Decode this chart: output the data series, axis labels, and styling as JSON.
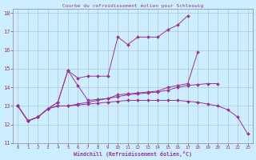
{
  "title": "Courbe du refroidissement éolien pour Schleswig",
  "xlabel": "Windchill (Refroidissement éolien,°C)",
  "bg_color": "#cceeff",
  "line_color": "#993399",
  "xlim": [
    -0.5,
    23.5
  ],
  "ylim": [
    11,
    18.2
  ],
  "xticks": [
    0,
    1,
    2,
    3,
    4,
    5,
    6,
    7,
    8,
    9,
    10,
    11,
    12,
    13,
    14,
    15,
    16,
    17,
    18,
    19,
    20,
    21,
    22,
    23
  ],
  "yticks": [
    11,
    12,
    13,
    14,
    15,
    16,
    17,
    18
  ],
  "lines": [
    {
      "x": [
        0,
        1,
        2,
        3,
        4,
        5,
        6,
        7,
        8,
        9,
        10,
        11,
        12,
        13,
        14,
        15,
        16,
        17,
        18,
        19,
        20,
        21,
        22,
        23
      ],
      "y": [
        13.0,
        12.2,
        12.4,
        12.85,
        13.2,
        14.9,
        14.5,
        14.6,
        14.6,
        14.6,
        16.7,
        16.3,
        16.7,
        16.7,
        16.7,
        17.1,
        17.35,
        17.85,
        null,
        null,
        null,
        null,
        null,
        null
      ]
    },
    {
      "x": [
        0,
        1,
        2,
        3,
        4,
        5,
        6,
        7,
        8,
        9,
        10,
        11,
        12,
        13,
        14,
        15,
        16,
        17,
        18,
        19,
        20,
        21,
        22,
        23
      ],
      "y": [
        13.0,
        12.2,
        12.4,
        12.85,
        13.2,
        14.9,
        14.1,
        13.3,
        13.35,
        13.4,
        13.6,
        13.65,
        13.7,
        13.75,
        13.8,
        14.0,
        14.1,
        14.2,
        15.9,
        null,
        null,
        null,
        null,
        null
      ]
    },
    {
      "x": [
        0,
        1,
        2,
        3,
        4,
        5,
        6,
        7,
        8,
        9,
        10,
        11,
        12,
        13,
        14,
        15,
        16,
        17,
        18,
        19,
        20,
        21,
        22,
        23
      ],
      "y": [
        13.0,
        12.2,
        12.4,
        12.85,
        13.0,
        13.0,
        13.1,
        13.2,
        13.3,
        13.4,
        13.5,
        13.6,
        13.65,
        13.7,
        13.75,
        13.85,
        14.0,
        14.1,
        14.15,
        14.2,
        14.2,
        null,
        null,
        null
      ]
    },
    {
      "x": [
        0,
        1,
        2,
        3,
        4,
        5,
        6,
        7,
        8,
        9,
        10,
        11,
        12,
        13,
        14,
        15,
        16,
        17,
        18,
        19,
        20,
        21,
        22,
        23
      ],
      "y": [
        13.0,
        12.2,
        12.4,
        12.85,
        13.0,
        13.0,
        13.05,
        13.1,
        13.15,
        13.2,
        13.25,
        13.3,
        13.3,
        13.3,
        13.3,
        13.3,
        13.3,
        13.25,
        13.2,
        13.1,
        13.0,
        12.8,
        12.4,
        11.5
      ]
    }
  ]
}
